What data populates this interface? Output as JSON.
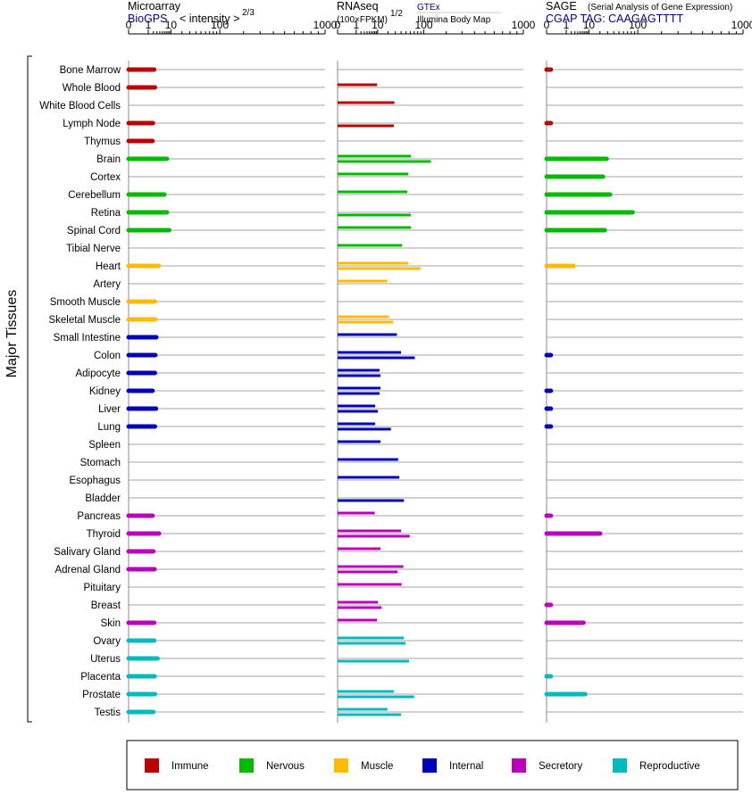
{
  "panels": {
    "microarray": {
      "title": "Microarray",
      "subtitle": "BioGPS",
      "unit": "< intensity >",
      "unit_exponent": "2/3"
    },
    "rnaseq": {
      "title": "RNAseq",
      "unit": "(100×FPKM)",
      "unit_exponent": "1/2",
      "source_1": "GTEx",
      "source_2": "Illumina Body Map"
    },
    "sage": {
      "title": "SAGE",
      "title_note": "(Serial Analysis of Gene Expression)",
      "subtitle": "CGAP TAG: CAAGAGTTTT"
    }
  },
  "y_axis_title": "Major Tissues",
  "colors": {
    "Immune": "#bb0000",
    "Nervous": "#00bb00",
    "Muscle": "#ffbb00",
    "Internal": "#0000bb",
    "Secretory": "#bb00bb",
    "Reproductive": "#00bbbb",
    "row_line": "#888888"
  },
  "legend": [
    {
      "label": "Immune",
      "color": "#bb0000"
    },
    {
      "label": "Nervous",
      "color": "#00bb00"
    },
    {
      "label": "Muscle",
      "color": "#ffbb00"
    },
    {
      "label": "Internal",
      "color": "#0000bb"
    },
    {
      "label": "Secretory",
      "color": "#bb00bb"
    },
    {
      "label": "Reproductive",
      "color": "#00bbbb"
    }
  ],
  "chart_data": {
    "type": "bar",
    "orientation": "horizontal",
    "x_scale": "power",
    "x_ticks": [
      "0",
      "1",
      "10",
      "100",
      "1000"
    ],
    "x_tick_values": [
      0,
      1,
      10,
      100,
      1000
    ],
    "xlim": [
      0,
      1000
    ],
    "grid": false,
    "legend_placement": "bottom",
    "categories": [
      "Bone Marrow",
      "Whole Blood",
      "White Blood Cells",
      "Lymph Node",
      "Thymus",
      "Brain",
      "Cortex",
      "Cerebellum",
      "Retina",
      "Spinal Cord",
      "Tibial Nerve",
      "Heart",
      "Artery",
      "Smooth Muscle",
      "Skeletal Muscle",
      "Small Intestine",
      "Colon",
      "Adipocyte",
      "Kidney",
      "Liver",
      "Lung",
      "Spleen",
      "Stomach",
      "Esophagus",
      "Bladder",
      "Pancreas",
      "Thyroid",
      "Salivary Gland",
      "Adrenal Gland",
      "Pituitary",
      "Breast",
      "Skin",
      "Ovary",
      "Uterus",
      "Placenta",
      "Prostate",
      "Testis"
    ],
    "groups": [
      "Immune",
      "Immune",
      "Immune",
      "Immune",
      "Immune",
      "Nervous",
      "Nervous",
      "Nervous",
      "Nervous",
      "Nervous",
      "Nervous",
      "Muscle",
      "Muscle",
      "Muscle",
      "Muscle",
      "Internal",
      "Internal",
      "Internal",
      "Internal",
      "Internal",
      "Internal",
      "Internal",
      "Internal",
      "Internal",
      "Internal",
      "Secretory",
      "Secretory",
      "Secretory",
      "Secretory",
      "Secretory",
      "Secretory",
      "Secretory",
      "Reproductive",
      "Reproductive",
      "Reproductive",
      "Reproductive",
      "Reproductive"
    ],
    "series": [
      {
        "name": "Microarray",
        "values": [
          2.2,
          2.4,
          null,
          1.9,
          1.8,
          7.4,
          null,
          6.0,
          7.4,
          8.8,
          null,
          3.6,
          null,
          2.4,
          2.5,
          2.8,
          2.5,
          2.4,
          1.8,
          2.7,
          2.4,
          null,
          null,
          null,
          null,
          1.8,
          3.7,
          2.0,
          2.3,
          null,
          null,
          2.2,
          2.2,
          3.2,
          2.3,
          2.4,
          2.0
        ]
      },
      {
        "name": "GTEx",
        "values": [
          null,
          9.6,
          28.6,
          null,
          null,
          61.5,
          55.3,
          52.6,
          null,
          61.5,
          41.6,
          55.3,
          19.3,
          null,
          21.2,
          32.5,
          39.8,
          11.5,
          12.3,
          8.3,
          8.3,
          12.3,
          34.6,
          36.7,
          null,
          8.0,
          39.8,
          12.3,
          44.3,
          40.9,
          10.2,
          9.6,
          45.5,
          null,
          null,
          27.7,
          19.3
        ]
      },
      {
        "name": "Illumina Body Map",
        "values": [
          null,
          null,
          null,
          27.7,
          null,
          126.9,
          null,
          null,
          61.5,
          null,
          null,
          88.8,
          null,
          null,
          26.9,
          null,
          71.8,
          12.3,
          11.5,
          10.2,
          23.7,
          null,
          null,
          null,
          45.5,
          null,
          58.4,
          null,
          33.6,
          null,
          13.2,
          null,
          49.0,
          56.8,
          null,
          69.9,
          39.8
        ]
      },
      {
        "name": "SAGE",
        "values": [
          0.01,
          null,
          null,
          0.01,
          null,
          28.6,
          23.7,
          33.6,
          84.0,
          25.9,
          null,
          2.6,
          null,
          null,
          null,
          null,
          0.01,
          null,
          0.01,
          0.01,
          0.01,
          null,
          null,
          null,
          null,
          0.01,
          20.2,
          null,
          null,
          null,
          0.01,
          6.6,
          null,
          null,
          0.01,
          7.6,
          null
        ]
      }
    ]
  }
}
